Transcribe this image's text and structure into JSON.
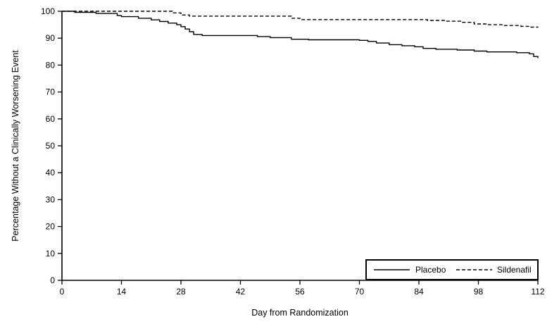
{
  "chart_data": {
    "type": "line",
    "subtype": "kaplan-meier-step",
    "title": "",
    "xlabel": "Day from Randomization",
    "ylabel": "Percentage Without a Clinically Worsening Event",
    "xlim": [
      0,
      112
    ],
    "ylim": [
      0,
      100
    ],
    "x_ticks": [
      0,
      14,
      28,
      42,
      56,
      70,
      84,
      98,
      112
    ],
    "y_ticks": [
      0,
      10,
      20,
      30,
      40,
      50,
      60,
      70,
      80,
      90,
      100
    ],
    "grid": false,
    "legend_position": "inside-bottom-right",
    "line_color": "#000000",
    "background_color": "#ffffff",
    "series": [
      {
        "name": "Placebo",
        "line_style": "solid",
        "color": "#000000",
        "points": [
          [
            0,
            100
          ],
          [
            3,
            99.6
          ],
          [
            8,
            99.2
          ],
          [
            13,
            98.4
          ],
          [
            14,
            98
          ],
          [
            18,
            97.4
          ],
          [
            21,
            96.8
          ],
          [
            23,
            96.2
          ],
          [
            25,
            95.6
          ],
          [
            27,
            95
          ],
          [
            28,
            94.3
          ],
          [
            29,
            93.4
          ],
          [
            30,
            92.4
          ],
          [
            31,
            91.4
          ],
          [
            33,
            91
          ],
          [
            46,
            90.6
          ],
          [
            49,
            90.2
          ],
          [
            54,
            89.6
          ],
          [
            58,
            89.4
          ],
          [
            70,
            89.2
          ],
          [
            72,
            88.8
          ],
          [
            74,
            88.2
          ],
          [
            77,
            87.6
          ],
          [
            80,
            87.2
          ],
          [
            83,
            86.8
          ],
          [
            85,
            86.2
          ],
          [
            88,
            85.9
          ],
          [
            93,
            85.6
          ],
          [
            97,
            85.2
          ],
          [
            100,
            84.9
          ],
          [
            107,
            84.6
          ],
          [
            110,
            84.2
          ],
          [
            111,
            83.2
          ],
          [
            112,
            82.6
          ]
        ]
      },
      {
        "name": "Sildenafil",
        "line_style": "dashed",
        "color": "#000000",
        "points": [
          [
            0,
            100
          ],
          [
            26,
            99.4
          ],
          [
            28,
            98.6
          ],
          [
            30,
            98.2
          ],
          [
            54,
            97.4
          ],
          [
            56,
            96.9
          ],
          [
            86,
            96.6
          ],
          [
            90,
            96.3
          ],
          [
            94,
            95.9
          ],
          [
            97,
            95.3
          ],
          [
            100,
            95
          ],
          [
            104,
            94.7
          ],
          [
            108,
            94.4
          ],
          [
            110,
            94.1
          ],
          [
            112,
            93.9
          ]
        ]
      }
    ]
  }
}
